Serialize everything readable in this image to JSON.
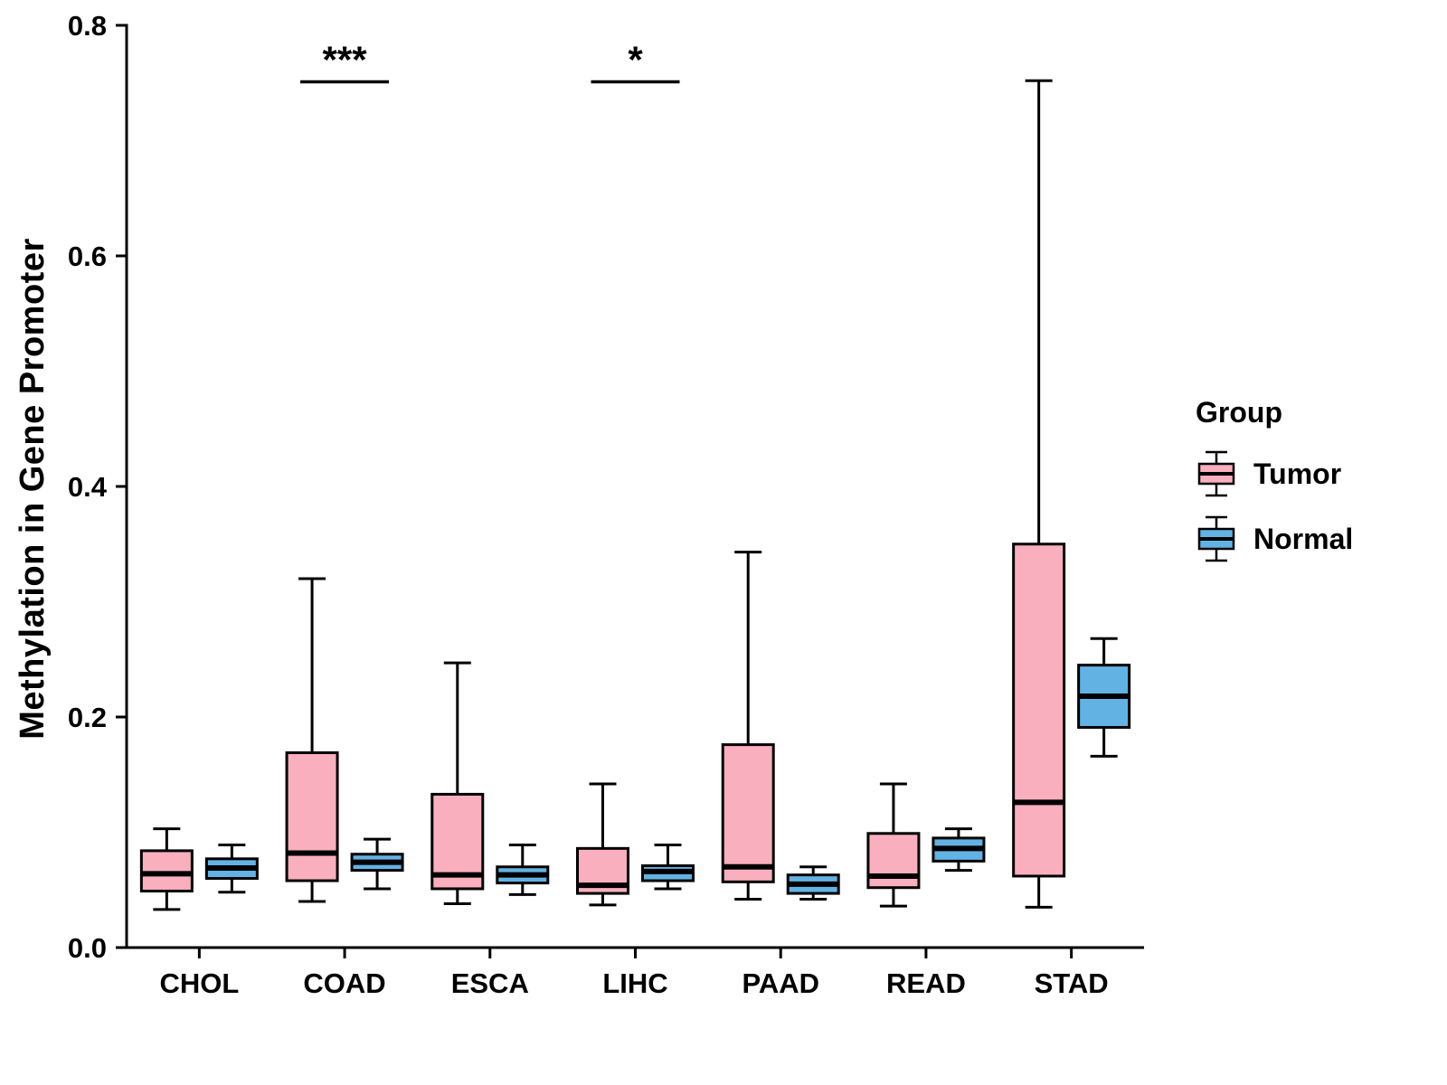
{
  "chart_data": {
    "type": "boxplot",
    "title": "",
    "xlabel": "",
    "ylabel": "Methylation in Gene Promoter",
    "ylim": [
      0.0,
      0.8
    ],
    "yticks": [
      0.0,
      0.2,
      0.4,
      0.6,
      0.8
    ],
    "grid": false,
    "legend_position": "right",
    "categories": [
      "CHOL",
      "COAD",
      "ESCA",
      "LIHC",
      "PAAD",
      "READ",
      "STAD"
    ],
    "legend": {
      "title": "Group",
      "entries": [
        {
          "label": "Tumor",
          "color": "#F9AFBE"
        },
        {
          "label": "Normal",
          "color": "#63B2E4"
        }
      ]
    },
    "series": [
      {
        "name": "Tumor",
        "color": "#F9AFBE",
        "boxes": [
          {
            "category": "CHOL",
            "whisker_low": 0.033,
            "q1": 0.049,
            "median": 0.064,
            "q3": 0.084,
            "whisker_high": 0.103
          },
          {
            "category": "COAD",
            "whisker_low": 0.04,
            "q1": 0.058,
            "median": 0.082,
            "q3": 0.169,
            "whisker_high": 0.32
          },
          {
            "category": "ESCA",
            "whisker_low": 0.038,
            "q1": 0.051,
            "median": 0.063,
            "q3": 0.133,
            "whisker_high": 0.247
          },
          {
            "category": "LIHC",
            "whisker_low": 0.037,
            "q1": 0.047,
            "median": 0.054,
            "q3": 0.086,
            "whisker_high": 0.142
          },
          {
            "category": "PAAD",
            "whisker_low": 0.042,
            "q1": 0.057,
            "median": 0.07,
            "q3": 0.176,
            "whisker_high": 0.343
          },
          {
            "category": "READ",
            "whisker_low": 0.036,
            "q1": 0.052,
            "median": 0.062,
            "q3": 0.099,
            "whisker_high": 0.142
          },
          {
            "category": "STAD",
            "whisker_low": 0.035,
            "q1": 0.062,
            "median": 0.126,
            "q3": 0.35,
            "whisker_high": 0.752
          }
        ]
      },
      {
        "name": "Normal",
        "color": "#63B2E4",
        "boxes": [
          {
            "category": "CHOL",
            "whisker_low": 0.048,
            "q1": 0.06,
            "median": 0.069,
            "q3": 0.077,
            "whisker_high": 0.089
          },
          {
            "category": "COAD",
            "whisker_low": 0.051,
            "q1": 0.067,
            "median": 0.074,
            "q3": 0.081,
            "whisker_high": 0.094
          },
          {
            "category": "ESCA",
            "whisker_low": 0.046,
            "q1": 0.056,
            "median": 0.063,
            "q3": 0.07,
            "whisker_high": 0.089
          },
          {
            "category": "LIHC",
            "whisker_low": 0.051,
            "q1": 0.058,
            "median": 0.066,
            "q3": 0.071,
            "whisker_high": 0.089
          },
          {
            "category": "PAAD",
            "whisker_low": 0.042,
            "q1": 0.047,
            "median": 0.055,
            "q3": 0.063,
            "whisker_high": 0.07
          },
          {
            "category": "READ",
            "whisker_low": 0.067,
            "q1": 0.075,
            "median": 0.086,
            "q3": 0.095,
            "whisker_high": 0.103
          },
          {
            "category": "STAD",
            "whisker_low": 0.166,
            "q1": 0.191,
            "median": 0.218,
            "q3": 0.245,
            "whisker_high": 0.268
          }
        ]
      }
    ],
    "annotations": [
      {
        "category": "COAD",
        "label": "***",
        "line_y": 0.751
      },
      {
        "category": "LIHC",
        "label": "*",
        "line_y": 0.751
      }
    ]
  }
}
